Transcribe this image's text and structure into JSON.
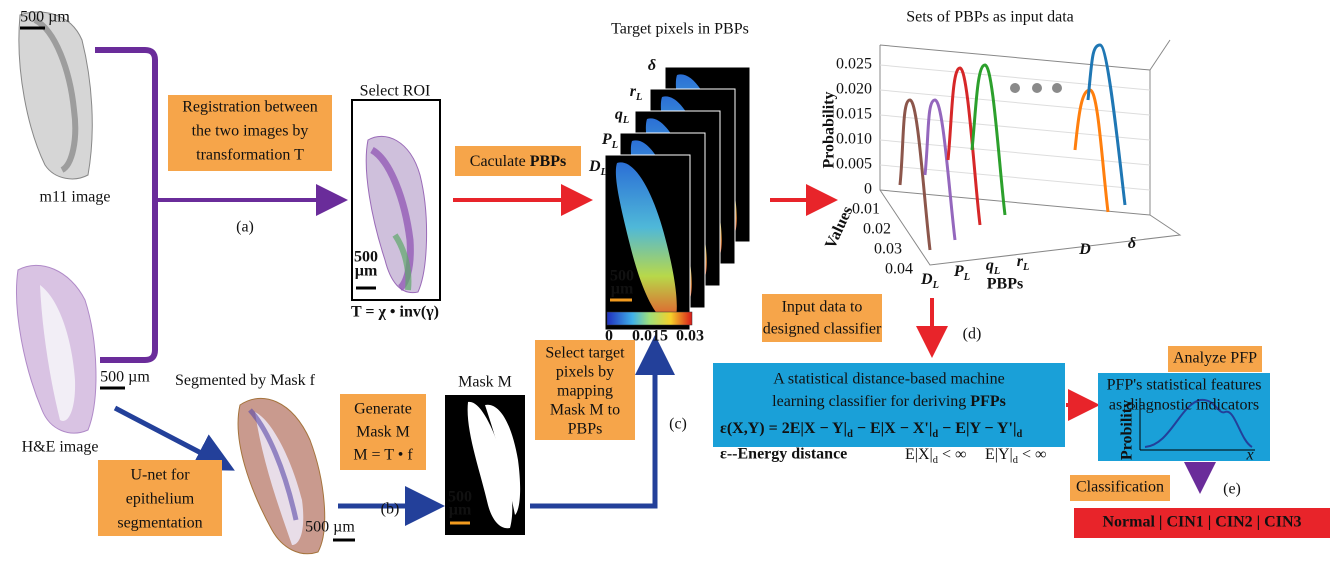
{
  "registration": {
    "scale_m11": "500 µm",
    "m11_label": "m11 image",
    "scale_he": "500 µm",
    "he_label": "H&E image",
    "box": [
      "Registration between",
      "the two images by",
      "transformation T"
    ],
    "step": "(a)"
  },
  "roi": {
    "title": "Select ROI",
    "scale": [
      "500",
      "µm"
    ],
    "formula": "T = χ • inv(γ)"
  },
  "pbp_calc": {
    "box": [
      "Caculate ",
      "PBPs"
    ]
  },
  "pbp_stack": {
    "title": "Target pixels in PBPs",
    "layers": [
      [
        "D",
        "L"
      ],
      [
        "P",
        "L"
      ],
      [
        "q",
        "L"
      ],
      [
        "r",
        "L"
      ],
      [
        "δ"
      ]
    ],
    "scale": [
      "500",
      "µm"
    ],
    "colorbar_ticks": [
      "0",
      "0.015",
      "0.03"
    ]
  },
  "plot": {
    "title": "Sets of PBPs as input data",
    "y_label": "Probability",
    "y_ticks": [
      "0.025",
      "0.020",
      "0.015",
      "0.010",
      "0.005",
      "0"
    ],
    "depth_label": "Values",
    "depth_ticks": [
      "0.01",
      "0.02",
      "0.03",
      "0.04"
    ],
    "x_label": "PBPs",
    "x_ticks": [
      [
        "D",
        "L"
      ],
      [
        "P",
        "L"
      ],
      [
        "q",
        "L"
      ],
      [
        "r",
        "L"
      ],
      [
        "D"
      ],
      [
        "δ"
      ]
    ]
  },
  "input": {
    "box": [
      "Input data to",
      "designed classifier"
    ],
    "step": "(d)"
  },
  "classifier": {
    "lines": [
      "A statistical distance-based machine",
      [
        "learning classifier for deriving ",
        "PFPs"
      ]
    ],
    "formula": [
      "ε(X,Y) = 2E|X − Y|",
      "d",
      " − E|X − X'|",
      "d",
      " − E|Y − Y'|",
      "d"
    ],
    "energy": "ε--Energy distance",
    "cond1": [
      "E|X|",
      "d",
      " < ∞"
    ],
    "cond2": [
      "E|Y|",
      "d",
      " < ∞"
    ]
  },
  "pfp": {
    "box": "Analyze PFP",
    "lines": [
      "PFP's statistical features",
      "as diagnostic indicators"
    ],
    "y_label": "Probility",
    "x_label": "x"
  },
  "classification": {
    "box": "Classification",
    "step": "(e)",
    "result": "Normal | CIN1 | CIN2 | CIN3"
  },
  "segmentation": {
    "title": [
      "Segmented by Mask ",
      "f"
    ],
    "unet": [
      "U-net for",
      "epithelium",
      "segmentation"
    ],
    "scale": "500 µm",
    "box": [
      "Generate",
      "Mask M",
      "M = T • f"
    ],
    "step": "(b)"
  },
  "mask": {
    "title": "Mask M",
    "scale": [
      "500",
      "µm"
    ],
    "box": [
      "Select target",
      "pixels by",
      "mapping",
      "Mask M to",
      "PBPs"
    ],
    "step": "(c)"
  }
}
